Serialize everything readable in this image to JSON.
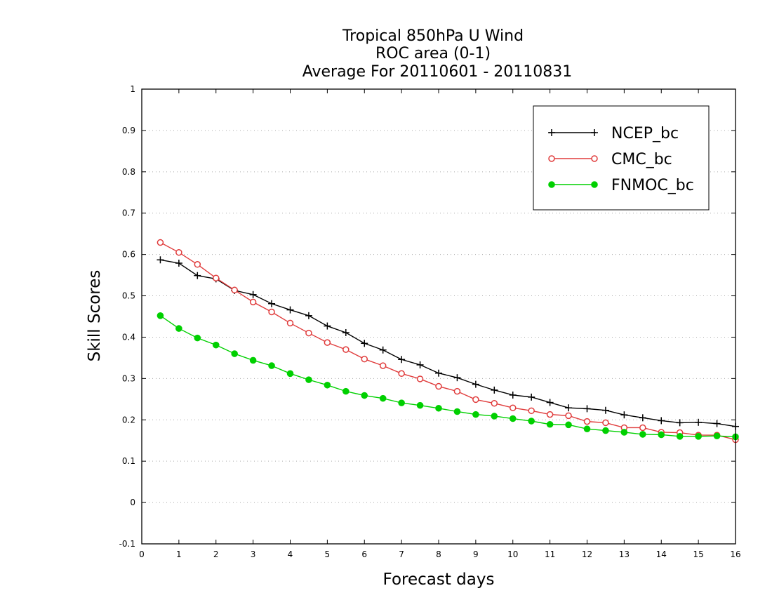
{
  "chart_data": {
    "type": "line",
    "title_lines": [
      "Tropical 850hPa U Wind",
      "ROC area (0-1)",
      "Average For 20110601 - 20110831"
    ],
    "xlabel": "Forecast days",
    "ylabel": "Skill Scores",
    "xlim": [
      0,
      16
    ],
    "ylim": [
      -0.1,
      1
    ],
    "x_ticks": [
      "0",
      "1",
      "2",
      "3",
      "4",
      "5",
      "6",
      "7",
      "8",
      "9",
      "10",
      "11",
      "12",
      "13",
      "14",
      "15",
      "16"
    ],
    "y_ticks": [
      "-0.1",
      "0",
      "0.1",
      "0.2",
      "0.3",
      "0.4",
      "0.5",
      "0.6",
      "0.7",
      "0.8",
      "0.9",
      "1"
    ],
    "grid": true,
    "legend_position": "top-right",
    "x": [
      0.5,
      1,
      1.5,
      2,
      2.5,
      3,
      3.5,
      4,
      4.5,
      5,
      5.5,
      6,
      6.5,
      7,
      7.5,
      8,
      8.5,
      9,
      9.5,
      10,
      10.5,
      11,
      11.5,
      12,
      12.5,
      13,
      13.5,
      14,
      14.5,
      15,
      15.5,
      16
    ],
    "series": [
      {
        "name": "NCEP_bc",
        "color": "#000000",
        "marker": "plus",
        "values": [
          0.587,
          0.579,
          0.549,
          0.541,
          0.513,
          0.503,
          0.481,
          0.466,
          0.452,
          0.427,
          0.411,
          0.385,
          0.369,
          0.346,
          0.333,
          0.313,
          0.302,
          0.286,
          0.272,
          0.26,
          0.255,
          0.242,
          0.229,
          0.227,
          0.223,
          0.212,
          0.205,
          0.198,
          0.193,
          0.194,
          0.191,
          0.184
        ]
      },
      {
        "name": "CMC_bc",
        "color": "#e03c3c",
        "marker": "open-circle",
        "values": [
          0.629,
          0.605,
          0.576,
          0.543,
          0.514,
          0.485,
          0.461,
          0.434,
          0.41,
          0.387,
          0.37,
          0.347,
          0.331,
          0.312,
          0.299,
          0.281,
          0.269,
          0.249,
          0.24,
          0.229,
          0.222,
          0.213,
          0.21,
          0.196,
          0.193,
          0.181,
          0.181,
          0.17,
          0.169,
          0.163,
          0.163,
          0.152
        ]
      },
      {
        "name": "FNMOC_bc",
        "color": "#00d000",
        "marker": "filled-circle",
        "values": [
          0.452,
          0.421,
          0.398,
          0.381,
          0.36,
          0.344,
          0.331,
          0.312,
          0.297,
          0.284,
          0.269,
          0.259,
          0.252,
          0.241,
          0.235,
          0.228,
          0.22,
          0.213,
          0.209,
          0.203,
          0.197,
          0.189,
          0.188,
          0.178,
          0.174,
          0.17,
          0.165,
          0.164,
          0.16,
          0.16,
          0.161,
          0.159
        ]
      }
    ]
  }
}
